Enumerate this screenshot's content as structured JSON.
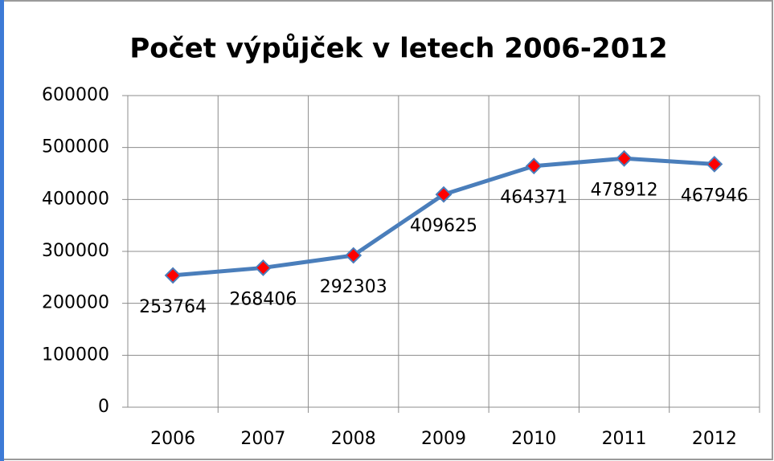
{
  "chart_data": {
    "type": "line",
    "title": "Počet výpůjček v letech 2006-2012",
    "categories": [
      "2006",
      "2007",
      "2008",
      "2009",
      "2010",
      "2011",
      "2012"
    ],
    "values": [
      253764,
      268406,
      292303,
      409625,
      464371,
      478912,
      467946
    ],
    "color": "#4a7ebb",
    "marker_color": "#ff0000",
    "ylim": [
      0,
      600000
    ],
    "yticks": [
      0,
      100000,
      200000,
      300000,
      400000,
      500000,
      600000
    ],
    "grid": true
  }
}
